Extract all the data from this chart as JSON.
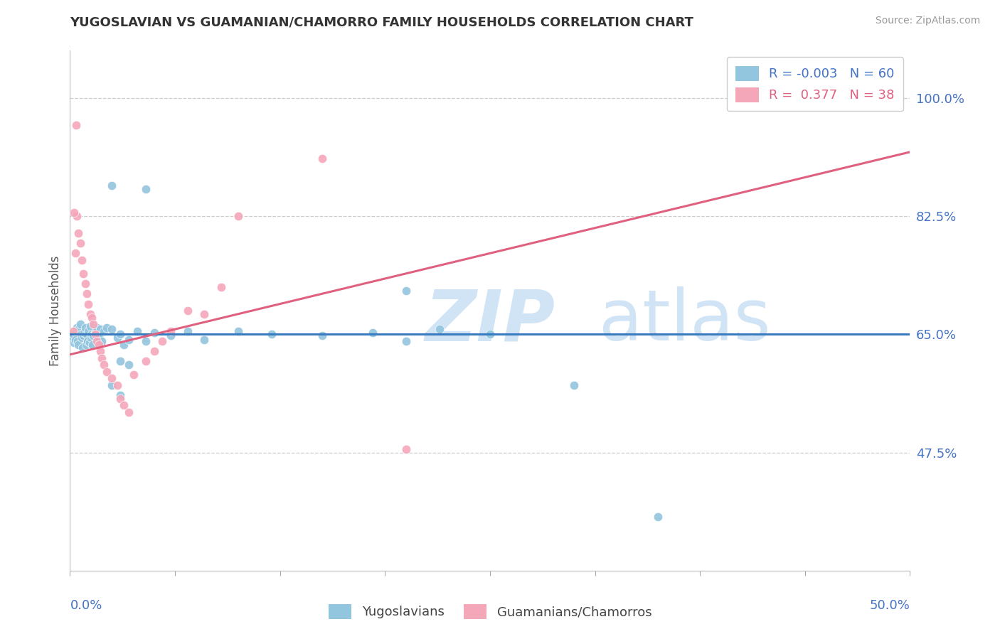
{
  "title": "YUGOSLAVIAN VS GUAMANIAN/CHAMORRO FAMILY HOUSEHOLDS CORRELATION CHART",
  "source": "Source: ZipAtlas.com",
  "ylabel": "Family Households",
  "yticks": [
    47.5,
    65.0,
    82.5,
    100.0
  ],
  "ytick_labels": [
    "47.5%",
    "65.0%",
    "82.5%",
    "100.0%"
  ],
  "xmin": 0.0,
  "xmax": 50.0,
  "ymin": 30.0,
  "ymax": 107.0,
  "legend_r_blue": "-0.003",
  "legend_n_blue": "60",
  "legend_r_pink": "0.377",
  "legend_n_pink": "38",
  "legend_label_blue": "Yugoslavians",
  "legend_label_pink": "Guamanians/Chamorros",
  "blue_dot_color": "#92c5de",
  "pink_dot_color": "#f4a7b9",
  "blue_line_color": "#3a7bbf",
  "pink_line_color": "#e06080",
  "title_color": "#333333",
  "axis_label_color": "#4472c4",
  "grid_color": "#cccccc",
  "watermark_color": "#d0e4f5",
  "blue_scatter": [
    [
      0.15,
      64.5
    ],
    [
      0.2,
      65.0
    ],
    [
      0.25,
      63.8
    ],
    [
      0.3,
      64.2
    ],
    [
      0.35,
      65.5
    ],
    [
      0.4,
      66.0
    ],
    [
      0.45,
      64.0
    ],
    [
      0.5,
      63.5
    ],
    [
      0.55,
      65.8
    ],
    [
      0.6,
      66.5
    ],
    [
      0.65,
      65.0
    ],
    [
      0.7,
      64.5
    ],
    [
      0.75,
      63.0
    ],
    [
      0.8,
      64.8
    ],
    [
      0.85,
      65.2
    ],
    [
      0.9,
      66.0
    ],
    [
      0.95,
      63.5
    ],
    [
      1.0,
      65.0
    ],
    [
      1.05,
      64.0
    ],
    [
      1.1,
      65.5
    ],
    [
      1.15,
      63.8
    ],
    [
      1.2,
      66.2
    ],
    [
      1.25,
      64.5
    ],
    [
      1.3,
      65.0
    ],
    [
      1.35,
      63.5
    ],
    [
      1.4,
      64.8
    ],
    [
      1.5,
      65.2
    ],
    [
      1.6,
      66.0
    ],
    [
      1.7,
      64.5
    ],
    [
      1.8,
      65.8
    ],
    [
      1.9,
      64.0
    ],
    [
      2.0,
      65.5
    ],
    [
      2.2,
      66.0
    ],
    [
      2.5,
      65.8
    ],
    [
      2.8,
      64.5
    ],
    [
      3.0,
      65.0
    ],
    [
      3.2,
      63.5
    ],
    [
      3.5,
      64.2
    ],
    [
      4.0,
      65.5
    ],
    [
      4.5,
      64.0
    ],
    [
      5.0,
      65.2
    ],
    [
      6.0,
      64.8
    ],
    [
      7.0,
      65.5
    ],
    [
      8.0,
      64.2
    ],
    [
      10.0,
      65.5
    ],
    [
      12.0,
      65.0
    ],
    [
      15.0,
      64.8
    ],
    [
      18.0,
      65.2
    ],
    [
      20.0,
      64.0
    ],
    [
      22.0,
      65.8
    ],
    [
      25.0,
      65.0
    ],
    [
      3.0,
      61.0
    ],
    [
      3.5,
      60.5
    ],
    [
      2.5,
      57.5
    ],
    [
      3.0,
      56.0
    ],
    [
      2.5,
      87.0
    ],
    [
      4.5,
      86.5
    ],
    [
      20.0,
      71.5
    ],
    [
      30.0,
      57.5
    ],
    [
      35.0,
      38.0
    ]
  ],
  "pink_scatter": [
    [
      0.2,
      65.5
    ],
    [
      0.3,
      77.0
    ],
    [
      0.35,
      96.0
    ],
    [
      0.4,
      82.5
    ],
    [
      0.5,
      80.0
    ],
    [
      0.6,
      78.5
    ],
    [
      0.7,
      76.0
    ],
    [
      0.8,
      74.0
    ],
    [
      0.9,
      72.5
    ],
    [
      1.0,
      71.0
    ],
    [
      1.1,
      69.5
    ],
    [
      1.2,
      68.0
    ],
    [
      1.3,
      67.5
    ],
    [
      1.4,
      66.5
    ],
    [
      1.5,
      65.0
    ],
    [
      1.6,
      64.0
    ],
    [
      1.7,
      63.5
    ],
    [
      1.8,
      62.5
    ],
    [
      1.9,
      61.5
    ],
    [
      2.0,
      60.5
    ],
    [
      2.2,
      59.5
    ],
    [
      2.5,
      58.5
    ],
    [
      2.8,
      57.5
    ],
    [
      3.0,
      55.5
    ],
    [
      3.2,
      54.5
    ],
    [
      3.5,
      53.5
    ],
    [
      3.8,
      59.0
    ],
    [
      4.5,
      61.0
    ],
    [
      5.0,
      62.5
    ],
    [
      5.5,
      64.0
    ],
    [
      6.0,
      65.5
    ],
    [
      7.0,
      68.5
    ],
    [
      8.0,
      68.0
    ],
    [
      9.0,
      72.0
    ],
    [
      10.0,
      82.5
    ],
    [
      15.0,
      91.0
    ],
    [
      20.0,
      48.0
    ],
    [
      0.25,
      83.0
    ]
  ],
  "blue_regression_y0": 65.0,
  "blue_regression_y1": 65.0,
  "pink_regression_x0": 0.0,
  "pink_regression_y0": 62.0,
  "pink_regression_x1": 50.0,
  "pink_regression_y1": 92.0
}
